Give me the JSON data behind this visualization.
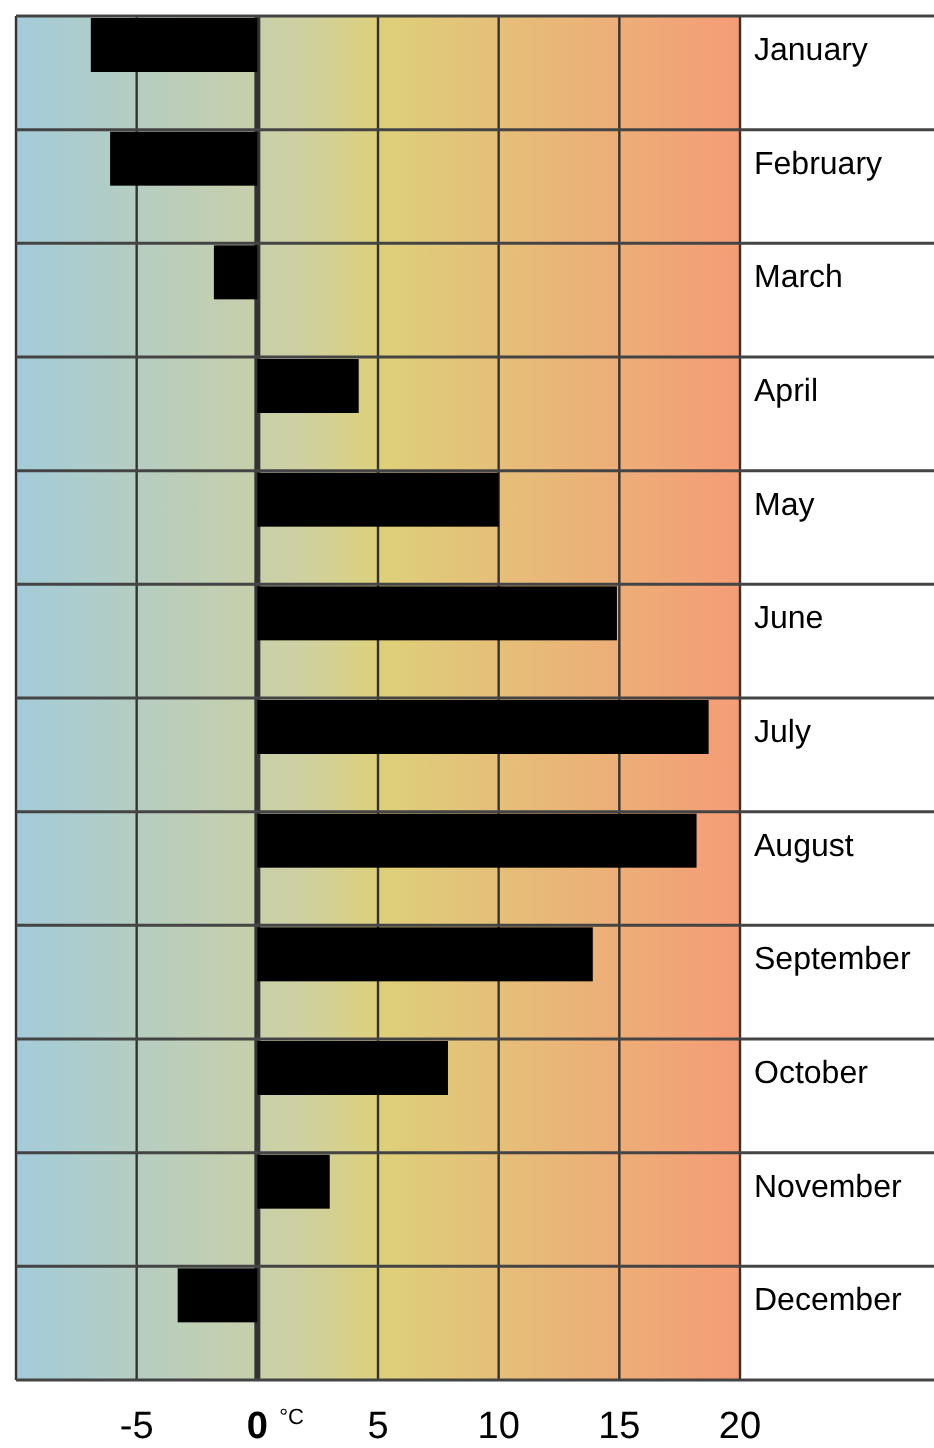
{
  "chart_data": {
    "type": "bar",
    "orientation": "horizontal",
    "xlabel": "°C",
    "categories": [
      "January",
      "February",
      "March",
      "April",
      "May",
      "June",
      "July",
      "August",
      "September",
      "October",
      "November",
      "December"
    ],
    "values": [
      -6.9,
      -6.1,
      -1.8,
      4.2,
      10.0,
      14.9,
      18.7,
      18.2,
      13.9,
      7.9,
      3.0,
      -3.3
    ],
    "color": "#000000",
    "xlim": [
      -10,
      20
    ],
    "xticks": [
      {
        "value": -10,
        "label": null
      },
      -5,
      0,
      5,
      10,
      15,
      20
    ],
    "grid": true
  }
}
